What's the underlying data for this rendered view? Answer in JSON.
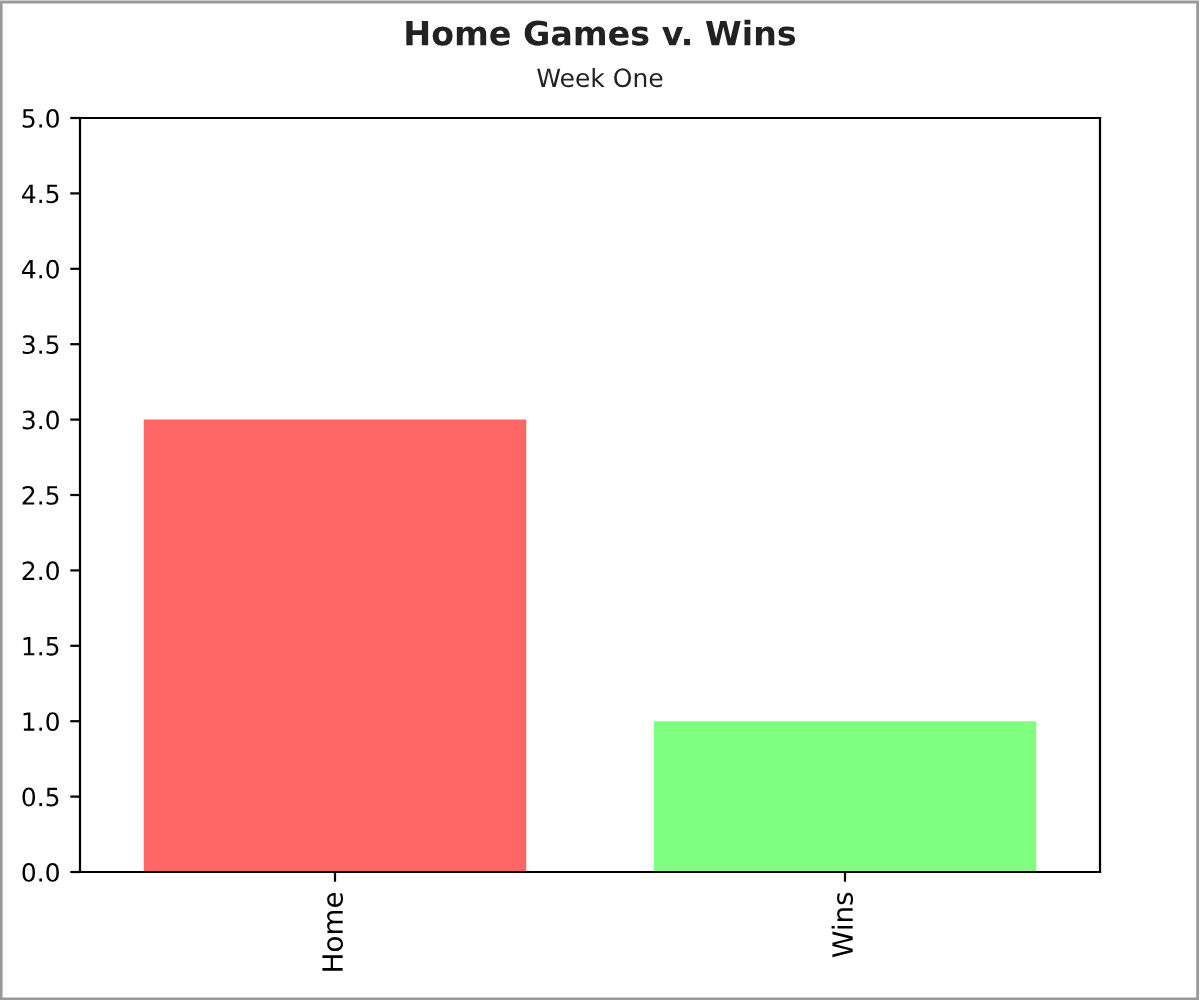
{
  "chart_data": {
    "type": "bar",
    "title": "Home Games v. Wins",
    "subtitle": "Week One",
    "categories": [
      "Home",
      "Wins"
    ],
    "values": [
      3,
      1
    ],
    "colors": [
      "#ff6666",
      "#80ff80"
    ],
    "ylim": [
      0,
      5
    ],
    "yticks": [
      {
        "value": 0,
        "label": "0.0"
      },
      {
        "value": 0.5,
        "label": "0.5"
      },
      {
        "value": 1,
        "label": "1.0"
      },
      {
        "value": 1.5,
        "label": "1.5"
      },
      {
        "value": 2,
        "label": "2.0"
      },
      {
        "value": 2.5,
        "label": "2.5"
      },
      {
        "value": 3,
        "label": "3.0"
      },
      {
        "value": 3.5,
        "label": "3.5"
      },
      {
        "value": 4,
        "label": "4.0"
      },
      {
        "value": 4.5,
        "label": "4.5"
      },
      {
        "value": 5,
        "label": "5.0"
      }
    ],
    "grid": false,
    "legend": false
  }
}
